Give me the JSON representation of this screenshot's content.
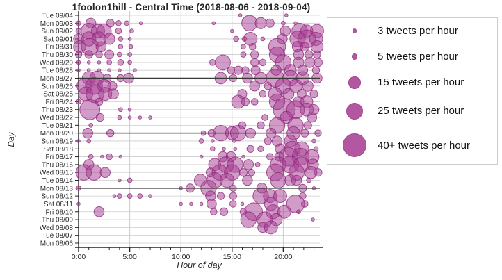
{
  "title": "1foolon1hill - Central Time (2018-08-06 - 2018-09-04)",
  "axes": {
    "x_title": "Hour of day",
    "y_title": "Day",
    "x_major_ticks": [
      {
        "hour": 0,
        "label": "0:00"
      },
      {
        "hour": 5,
        "label": "5:00"
      },
      {
        "hour": 10,
        "label": "10:00"
      },
      {
        "hour": 15,
        "label": "15:00"
      },
      {
        "hour": 20,
        "label": "20:00"
      }
    ],
    "x_minor_tick_hours": [
      0,
      1,
      2,
      3,
      4,
      5,
      6,
      7,
      8,
      9,
      10,
      11,
      12,
      13,
      14,
      15,
      16,
      17,
      18,
      19,
      20,
      21,
      22,
      23
    ],
    "x_range_hours": [
      0,
      24
    ],
    "grid_vertical_hours": [
      5,
      10,
      15,
      20
    ]
  },
  "colors": {
    "bubble_fill": "#a63a91",
    "bubble_fill_opacity": 0.5,
    "bubble_stroke": "#8e2b7b",
    "legend_fill_opacity": 0.85,
    "grid": "#cccccc",
    "dark_row_line": "#3a3a3a",
    "axis": "#222222",
    "text": "#262626"
  },
  "legend": {
    "items": [
      {
        "count": 3,
        "label": "3 tweets per hour"
      },
      {
        "count": 5,
        "label": "5 tweets per hour"
      },
      {
        "count": 15,
        "label": "15 tweets per hour"
      },
      {
        "count": 25,
        "label": "25 tweets per hour"
      },
      {
        "count": 40,
        "label": "40+ tweets per hour"
      }
    ]
  },
  "chart_data": {
    "type": "scatter",
    "note": "Bubble chart: tweets per hour by day; bubbles = [hour_of_day, tweets_per_hour]",
    "days": [
      {
        "label": "Tue 09/04",
        "dark": false,
        "bubbles": [
          [
            15.8,
            3
          ],
          [
            20.3,
            3
          ]
        ]
      },
      {
        "label": "Mon 09/03",
        "dark": false,
        "bubbles": [
          [
            0,
            5
          ],
          [
            1.2,
            14
          ],
          [
            3.1,
            10
          ],
          [
            3.9,
            6
          ],
          [
            4.7,
            5
          ],
          [
            6.1,
            3
          ],
          [
            13.2,
            3
          ],
          [
            16.7,
            25
          ],
          [
            17.8,
            16
          ],
          [
            18.7,
            11
          ],
          [
            20,
            4
          ],
          [
            21.2,
            3
          ]
        ]
      },
      {
        "label": "Sun 09/02",
        "dark": false,
        "bubbles": [
          [
            0,
            6
          ],
          [
            1,
            25
          ],
          [
            1.9,
            20
          ],
          [
            2.5,
            22
          ],
          [
            3.9,
            7
          ],
          [
            5.2,
            4
          ],
          [
            15,
            3
          ],
          [
            20.2,
            14
          ],
          [
            21.6,
            25
          ],
          [
            22.3,
            18
          ],
          [
            23.3,
            20
          ]
        ]
      },
      {
        "label": "Sat 09/01",
        "dark": false,
        "bubbles": [
          [
            0,
            14
          ],
          [
            1,
            22
          ],
          [
            2,
            22
          ],
          [
            3,
            16
          ],
          [
            4.1,
            5
          ],
          [
            5,
            3
          ],
          [
            15.4,
            6
          ],
          [
            16.2,
            5
          ],
          [
            16.8,
            20
          ],
          [
            18,
            4
          ],
          [
            19.9,
            14
          ],
          [
            21.4,
            25
          ],
          [
            22.3,
            30
          ],
          [
            23.2,
            20
          ]
        ]
      },
      {
        "label": "Fri 08/31",
        "dark": false,
        "bubbles": [
          [
            0.1,
            18
          ],
          [
            1.1,
            28
          ],
          [
            2.2,
            14
          ],
          [
            4.1,
            5
          ],
          [
            5.1,
            4
          ],
          [
            16.1,
            5
          ],
          [
            17,
            8
          ],
          [
            19.4,
            28
          ],
          [
            21.4,
            15
          ],
          [
            22.1,
            12
          ],
          [
            23.3,
            18
          ]
        ]
      },
      {
        "label": "Thu 08/30",
        "dark": false,
        "bubbles": [
          [
            0,
            8
          ],
          [
            1,
            10
          ],
          [
            2,
            8
          ],
          [
            3,
            12
          ],
          [
            4,
            5
          ],
          [
            5,
            4
          ],
          [
            16.1,
            6
          ],
          [
            17.2,
            10
          ],
          [
            19.4,
            25
          ],
          [
            21.5,
            14
          ],
          [
            22.5,
            10
          ],
          [
            23.3,
            9
          ]
        ]
      },
      {
        "label": "Wed 08/29",
        "dark": false,
        "bubbles": [
          [
            0,
            4
          ],
          [
            1,
            3
          ],
          [
            2,
            3
          ],
          [
            3,
            5
          ],
          [
            4.1,
            7
          ],
          [
            5,
            4
          ],
          [
            13.1,
            7
          ],
          [
            14.1,
            24
          ],
          [
            17.2,
            10
          ],
          [
            18,
            8
          ],
          [
            20,
            25
          ],
          [
            21.5,
            15
          ],
          [
            22.6,
            14
          ],
          [
            23.4,
            11
          ]
        ]
      },
      {
        "label": "Tue 08/28",
        "dark": false,
        "bubbles": [
          [
            0,
            3
          ],
          [
            1,
            3
          ],
          [
            2,
            3
          ],
          [
            3,
            3
          ],
          [
            4,
            3
          ],
          [
            5.5,
            3
          ],
          [
            14.9,
            9
          ],
          [
            15.6,
            11
          ],
          [
            16.3,
            9
          ],
          [
            17.3,
            12
          ],
          [
            19.3,
            14
          ],
          [
            20.7,
            17
          ],
          [
            21.9,
            14
          ],
          [
            23.2,
            9
          ]
        ]
      },
      {
        "label": "Mon 08/27",
        "dark": true,
        "bubbles": [
          [
            1,
            20
          ],
          [
            1.8,
            22
          ],
          [
            2.8,
            10
          ],
          [
            4.1,
            9
          ],
          [
            4.9,
            14
          ],
          [
            13.9,
            17
          ],
          [
            15.1,
            9
          ],
          [
            16.5,
            14
          ],
          [
            17.8,
            17
          ],
          [
            19.2,
            30
          ],
          [
            20.7,
            25
          ],
          [
            21.9,
            20
          ],
          [
            23.3,
            14
          ]
        ]
      },
      {
        "label": "Sun 08/26",
        "dark": false,
        "bubbles": [
          [
            0.6,
            25
          ],
          [
            1.5,
            28
          ],
          [
            2.5,
            20
          ],
          [
            3.3,
            12
          ],
          [
            17.2,
            14
          ],
          [
            18.5,
            9
          ],
          [
            20,
            25
          ],
          [
            21.2,
            20
          ],
          [
            22.4,
            15
          ]
        ]
      },
      {
        "label": "Sat 08/25",
        "dark": false,
        "bubbles": [
          [
            0.7,
            22
          ],
          [
            1.6,
            30
          ],
          [
            2.6,
            20
          ],
          [
            3.4,
            14
          ],
          [
            16,
            12
          ],
          [
            18,
            8
          ],
          [
            19.2,
            20
          ],
          [
            20.5,
            16
          ],
          [
            21.8,
            12
          ],
          [
            23,
            10
          ]
        ]
      },
      {
        "label": "Fri 08/24",
        "dark": false,
        "bubbles": [
          [
            0,
            5
          ],
          [
            2,
            9
          ],
          [
            15.6,
            20
          ],
          [
            16.3,
            10
          ],
          [
            17.2,
            8
          ],
          [
            19.4,
            25
          ],
          [
            21.5,
            15
          ],
          [
            22.3,
            18
          ]
        ]
      },
      {
        "label": "Thu 08/23",
        "dark": false,
        "bubbles": [
          [
            1.1,
            35
          ],
          [
            4.1,
            4
          ],
          [
            5,
            3
          ],
          [
            20.1,
            40
          ],
          [
            21.2,
            30
          ],
          [
            22.3,
            20
          ],
          [
            23,
            14
          ]
        ]
      },
      {
        "label": "Wed 08/22",
        "dark": false,
        "bubbles": [
          [
            2.1,
            10
          ],
          [
            4,
            4
          ],
          [
            5,
            3
          ],
          [
            6,
            3
          ],
          [
            7,
            3
          ],
          [
            18.2,
            7
          ],
          [
            20.3,
            18
          ],
          [
            22.8,
            13
          ]
        ]
      },
      {
        "label": "Tue 08/21",
        "dark": false,
        "bubbles": [
          [
            1.2,
            4
          ],
          [
            16,
            9
          ],
          [
            17.8,
            9
          ],
          [
            19.4,
            25
          ],
          [
            21.2,
            25
          ],
          [
            22.4,
            10
          ]
        ]
      },
      {
        "label": "Mon 08/20",
        "dark": true,
        "bubbles": [
          [
            0.9,
            14
          ],
          [
            3.1,
            9
          ],
          [
            12.2,
            5
          ],
          [
            13,
            9
          ],
          [
            13.9,
            25
          ],
          [
            15,
            20
          ],
          [
            15.6,
            25
          ],
          [
            16.8,
            14
          ],
          [
            18.8,
            14
          ],
          [
            21,
            20
          ],
          [
            22.1,
            10
          ],
          [
            23.4,
            8
          ]
        ]
      },
      {
        "label": "Sun 08/19",
        "dark": false,
        "bubbles": [
          [
            0,
            3
          ],
          [
            1,
            4
          ],
          [
            12,
            5
          ],
          [
            13.1,
            3
          ],
          [
            15.2,
            3
          ],
          [
            18.5,
            9
          ],
          [
            19.4,
            14
          ],
          [
            20.7,
            18
          ],
          [
            23,
            4
          ]
        ]
      },
      {
        "label": "Sat 08/18",
        "dark": false,
        "bubbles": [
          [
            13.1,
            5
          ],
          [
            14.2,
            3
          ],
          [
            15.3,
            3
          ],
          [
            16.8,
            9
          ],
          [
            17.8,
            7
          ],
          [
            19.7,
            14
          ],
          [
            20.9,
            25
          ],
          [
            21.8,
            22
          ],
          [
            23.2,
            5
          ]
        ]
      },
      {
        "label": "Fri 08/17",
        "dark": false,
        "bubbles": [
          [
            1.2,
            5
          ],
          [
            2.3,
            3
          ],
          [
            3,
            7
          ],
          [
            4.1,
            3
          ],
          [
            12,
            3
          ],
          [
            14.1,
            14
          ],
          [
            14.9,
            14
          ],
          [
            16.1,
            3
          ],
          [
            18.7,
            8
          ],
          [
            19.6,
            12
          ],
          [
            20.5,
            32
          ],
          [
            21.7,
            28
          ],
          [
            22.8,
            22
          ]
        ]
      },
      {
        "label": "Thu 08/16",
        "dark": false,
        "bubbles": [
          [
            1,
            14
          ],
          [
            13.3,
            18
          ],
          [
            14.4,
            25
          ],
          [
            15.3,
            25
          ],
          [
            16.6,
            14
          ],
          [
            17.5,
            5
          ],
          [
            19.5,
            25
          ],
          [
            20.7,
            28
          ],
          [
            21.8,
            25
          ],
          [
            22.9,
            16
          ]
        ]
      },
      {
        "label": "Wed 08/15",
        "dark": false,
        "bubbles": [
          [
            0.5,
            25
          ],
          [
            1.5,
            25
          ],
          [
            2.6,
            14
          ],
          [
            12.9,
            12
          ],
          [
            13.8,
            25
          ],
          [
            15,
            25
          ],
          [
            16.1,
            10
          ],
          [
            16.9,
            8
          ],
          [
            19.2,
            28
          ],
          [
            21.3,
            25
          ],
          [
            22.7,
            18
          ],
          [
            23.4,
            10
          ]
        ]
      },
      {
        "label": "Tue 08/14",
        "dark": false,
        "bubbles": [
          [
            4,
            3
          ],
          [
            5,
            5
          ],
          [
            11.9,
            18
          ],
          [
            13.3,
            25
          ],
          [
            14.5,
            22
          ],
          [
            16.5,
            14
          ],
          [
            19.5,
            25
          ],
          [
            20.7,
            16
          ],
          [
            21.3,
            14
          ],
          [
            22.5,
            5
          ]
        ]
      },
      {
        "label": "Mon 08/13",
        "dark": true,
        "bubbles": [
          [
            0,
            5
          ],
          [
            10,
            3
          ],
          [
            10.9,
            11
          ],
          [
            12.7,
            25
          ],
          [
            15.1,
            8
          ],
          [
            17.9,
            14
          ],
          [
            21.9,
            10
          ],
          [
            23,
            3
          ]
        ]
      },
      {
        "label": "Sun 08/12",
        "dark": false,
        "bubbles": [
          [
            3.5,
            3
          ],
          [
            4,
            5
          ],
          [
            5,
            5
          ],
          [
            6,
            5
          ],
          [
            7,
            3
          ],
          [
            12.9,
            14
          ],
          [
            13.9,
            9
          ],
          [
            15.1,
            9
          ],
          [
            17.8,
            25
          ],
          [
            18.7,
            20
          ],
          [
            19.7,
            20
          ],
          [
            21.9,
            8
          ]
        ]
      },
      {
        "label": "Sat 08/11",
        "dark": false,
        "bubbles": [
          [
            0,
            3
          ],
          [
            10,
            3
          ],
          [
            11,
            3
          ],
          [
            12,
            3
          ],
          [
            13,
            13
          ],
          [
            15.1,
            8
          ],
          [
            16,
            3
          ],
          [
            18.8,
            20
          ],
          [
            21.2,
            30
          ],
          [
            22.1,
            8
          ]
        ]
      },
      {
        "label": "Fri 08/10",
        "dark": false,
        "bubbles": [
          [
            2,
            14
          ],
          [
            13.2,
            8
          ],
          [
            14.2,
            10
          ],
          [
            16.1,
            8
          ],
          [
            17.1,
            30
          ],
          [
            19,
            22
          ],
          [
            20.1,
            20
          ],
          [
            21.5,
            4
          ]
        ]
      },
      {
        "label": "Thu 08/09",
        "dark": false,
        "bubbles": [
          [
            16.6,
            25
          ],
          [
            18.2,
            25
          ],
          [
            19.3,
            18
          ],
          [
            22.9,
            3
          ]
        ]
      },
      {
        "label": "Wed 08/08",
        "dark": false,
        "bubbles": [
          [
            18,
            14
          ],
          [
            18.8,
            20
          ]
        ]
      },
      {
        "label": "Tue 08/07",
        "dark": false,
        "bubbles": []
      },
      {
        "label": "Mon 08/06",
        "dark": false,
        "bubbles": []
      }
    ]
  }
}
